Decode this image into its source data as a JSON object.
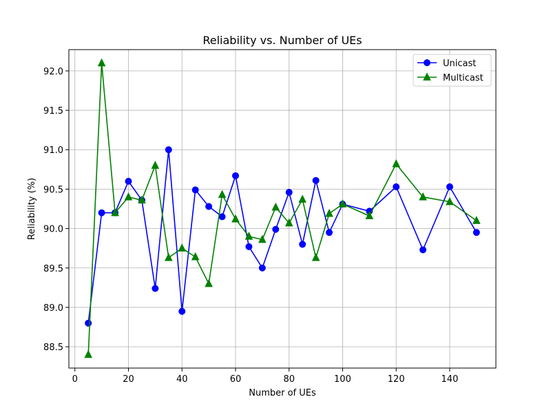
{
  "chart_data": {
    "type": "line",
    "title": "Reliability vs. Number of UEs",
    "xlabel": "Number of UEs",
    "ylabel": "Reliability (%)",
    "xlim": [
      -2.25,
      157.25
    ],
    "ylim": [
      88.23,
      92.27
    ],
    "xticks": [
      0,
      20,
      40,
      60,
      80,
      100,
      120,
      140
    ],
    "yticks": [
      88.5,
      89.0,
      89.5,
      90.0,
      90.5,
      91.0,
      91.5,
      92.0
    ],
    "ytick_labels": [
      "88.5",
      "89.0",
      "89.5",
      "90.0",
      "90.5",
      "91.0",
      "91.5",
      "92.0"
    ],
    "grid": true,
    "legend_position": "top-right",
    "x": [
      5,
      10,
      15,
      20,
      25,
      30,
      35,
      40,
      45,
      50,
      55,
      60,
      65,
      70,
      75,
      80,
      85,
      90,
      95,
      100,
      110,
      120,
      130,
      140,
      150
    ],
    "series": [
      {
        "name": "Unicast",
        "color": "#0000ff",
        "marker": "circle",
        "values": [
          88.8,
          90.2,
          90.2,
          90.6,
          90.36,
          89.24,
          91.0,
          88.95,
          90.49,
          90.28,
          90.15,
          90.67,
          89.77,
          89.5,
          89.99,
          90.46,
          89.8,
          90.61,
          89.95,
          90.31,
          90.22,
          90.53,
          89.73,
          90.53,
          89.95
        ]
      },
      {
        "name": "Multicast",
        "color": "#008000",
        "marker": "triangle",
        "values": [
          88.4,
          92.1,
          90.2,
          90.4,
          90.36,
          90.8,
          89.63,
          89.75,
          89.64,
          89.3,
          90.43,
          90.12,
          89.9,
          89.86,
          90.27,
          90.07,
          90.37,
          89.63,
          90.19,
          90.31,
          90.16,
          90.82,
          90.4,
          90.34,
          90.1
        ]
      }
    ]
  }
}
